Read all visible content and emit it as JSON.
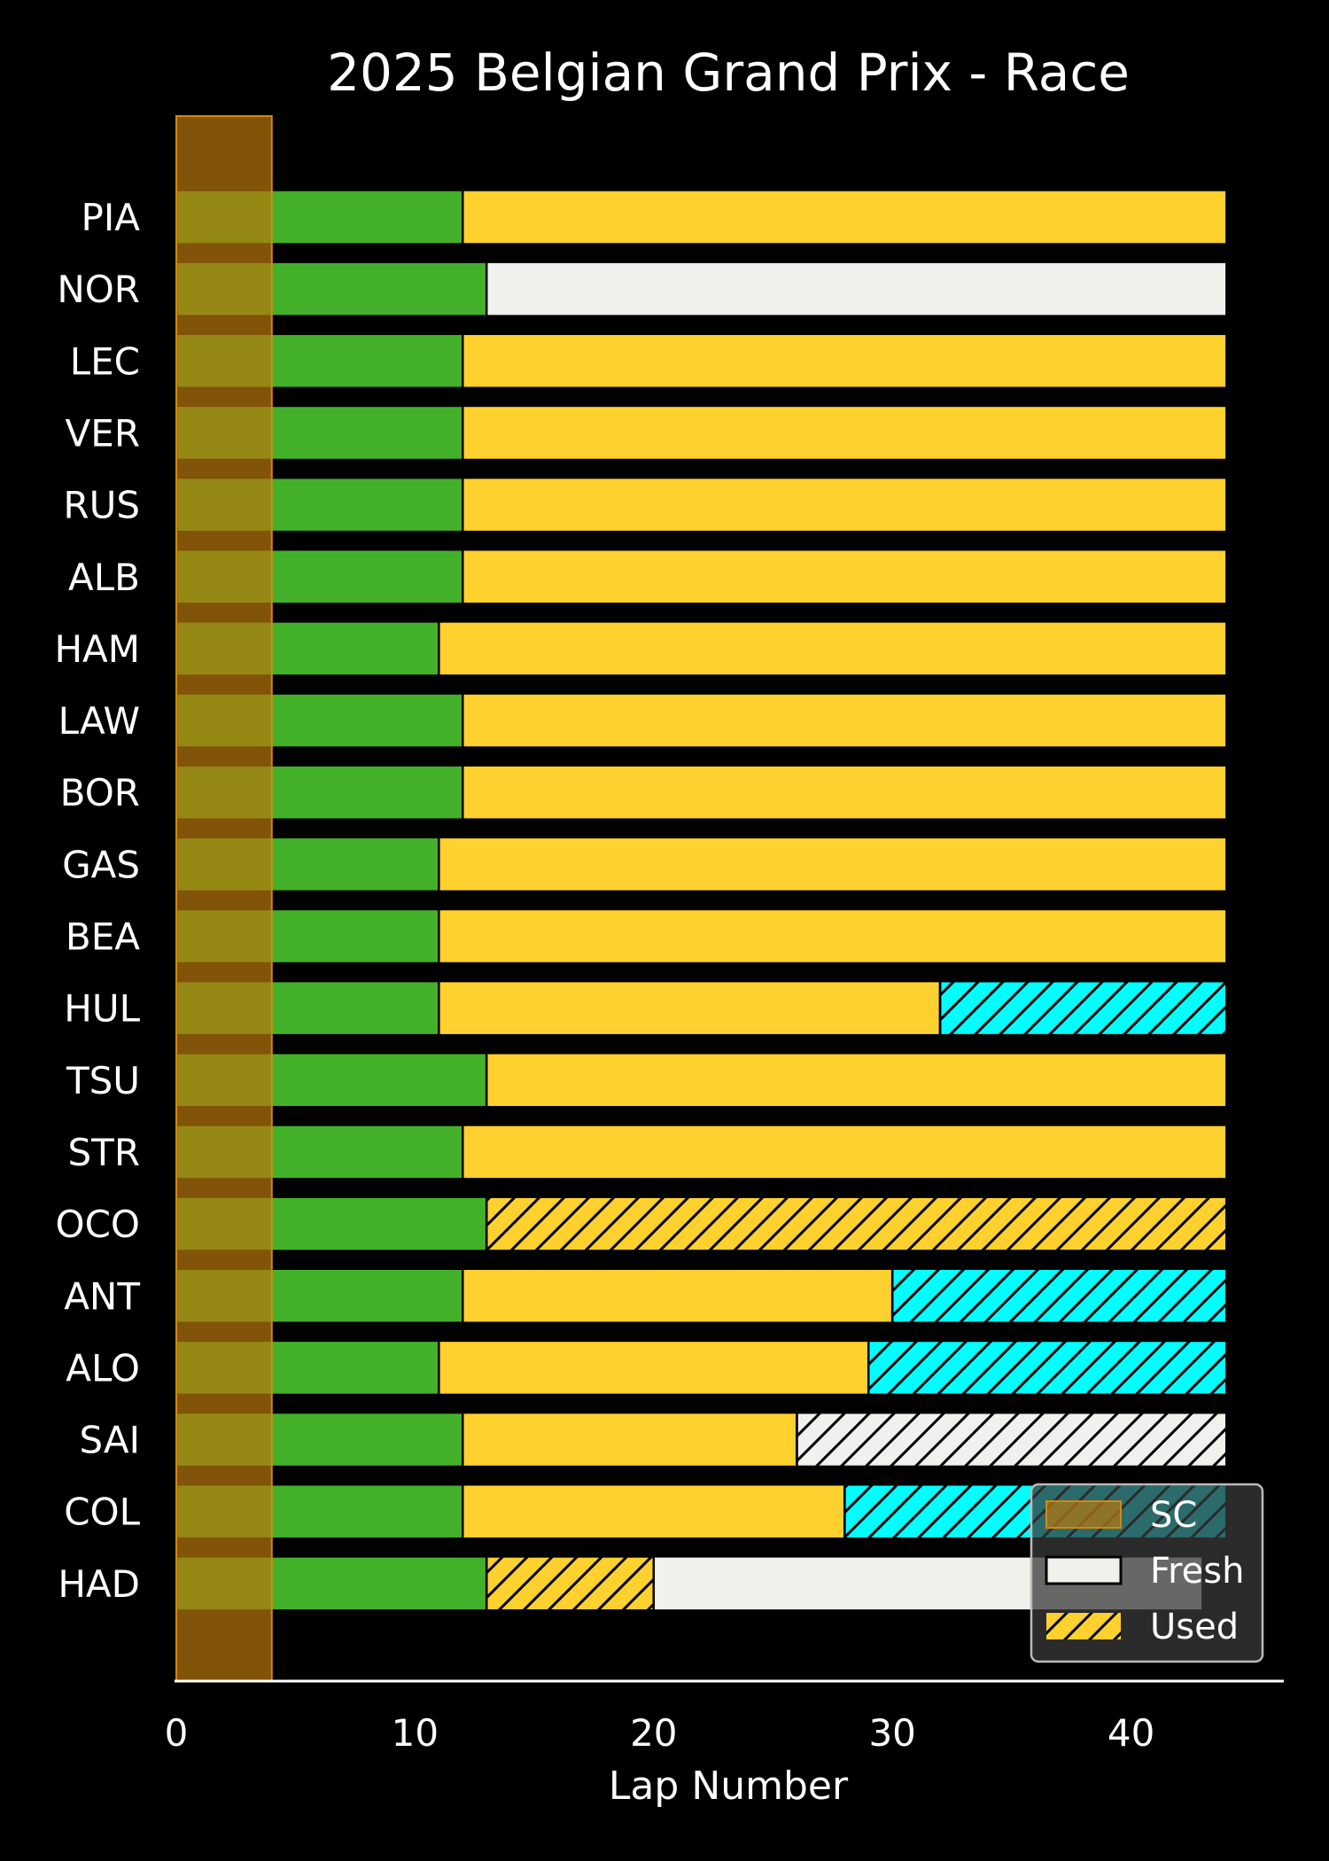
{
  "chart_data": {
    "type": "bar",
    "orientation": "horizontal",
    "stacked": true,
    "title": "2025 Belgian Grand Prix - Race",
    "xlabel": "Lap Number",
    "ylabel": "",
    "xlim": [
      0,
      46.4
    ],
    "xticks": [
      0,
      10,
      20,
      30,
      40
    ],
    "grid": false,
    "legend_position": "bottom-right",
    "compound_colors": {
      "INTERMEDIATE": "#43b02a",
      "MEDIUM": "#ffd12e",
      "HARD": "#f0f0ec",
      "SOFT": "#00ffff"
    },
    "safety_car": {
      "label": "SC",
      "start": 0,
      "end": 4,
      "color": "#b8770d"
    },
    "legend": [
      {
        "label": "SC",
        "kind": "sc"
      },
      {
        "label": "Fresh",
        "kind": "fresh"
      },
      {
        "label": "Used",
        "kind": "used"
      }
    ],
    "drivers": [
      {
        "name": "PIA",
        "stints": [
          {
            "compound": "INTERMEDIATE",
            "start": 0,
            "end": 12,
            "used": false
          },
          {
            "compound": "MEDIUM",
            "start": 12,
            "end": 44,
            "used": false
          }
        ]
      },
      {
        "name": "NOR",
        "stints": [
          {
            "compound": "INTERMEDIATE",
            "start": 0,
            "end": 13,
            "used": false
          },
          {
            "compound": "HARD",
            "start": 13,
            "end": 44,
            "used": false
          }
        ]
      },
      {
        "name": "LEC",
        "stints": [
          {
            "compound": "INTERMEDIATE",
            "start": 0,
            "end": 12,
            "used": false
          },
          {
            "compound": "MEDIUM",
            "start": 12,
            "end": 44,
            "used": false
          }
        ]
      },
      {
        "name": "VER",
        "stints": [
          {
            "compound": "INTERMEDIATE",
            "start": 0,
            "end": 12,
            "used": false
          },
          {
            "compound": "MEDIUM",
            "start": 12,
            "end": 44,
            "used": false
          }
        ]
      },
      {
        "name": "RUS",
        "stints": [
          {
            "compound": "INTERMEDIATE",
            "start": 0,
            "end": 12,
            "used": false
          },
          {
            "compound": "MEDIUM",
            "start": 12,
            "end": 44,
            "used": false
          }
        ]
      },
      {
        "name": "ALB",
        "stints": [
          {
            "compound": "INTERMEDIATE",
            "start": 0,
            "end": 12,
            "used": false
          },
          {
            "compound": "MEDIUM",
            "start": 12,
            "end": 44,
            "used": false
          }
        ]
      },
      {
        "name": "HAM",
        "stints": [
          {
            "compound": "INTERMEDIATE",
            "start": 0,
            "end": 11,
            "used": false
          },
          {
            "compound": "MEDIUM",
            "start": 11,
            "end": 44,
            "used": false
          }
        ]
      },
      {
        "name": "LAW",
        "stints": [
          {
            "compound": "INTERMEDIATE",
            "start": 0,
            "end": 12,
            "used": false
          },
          {
            "compound": "MEDIUM",
            "start": 12,
            "end": 44,
            "used": false
          }
        ]
      },
      {
        "name": "BOR",
        "stints": [
          {
            "compound": "INTERMEDIATE",
            "start": 0,
            "end": 12,
            "used": false
          },
          {
            "compound": "MEDIUM",
            "start": 12,
            "end": 44,
            "used": false
          }
        ]
      },
      {
        "name": "GAS",
        "stints": [
          {
            "compound": "INTERMEDIATE",
            "start": 0,
            "end": 11,
            "used": false
          },
          {
            "compound": "MEDIUM",
            "start": 11,
            "end": 44,
            "used": false
          }
        ]
      },
      {
        "name": "BEA",
        "stints": [
          {
            "compound": "INTERMEDIATE",
            "start": 0,
            "end": 11,
            "used": false
          },
          {
            "compound": "MEDIUM",
            "start": 11,
            "end": 44,
            "used": false
          }
        ]
      },
      {
        "name": "HUL",
        "stints": [
          {
            "compound": "INTERMEDIATE",
            "start": 0,
            "end": 11,
            "used": false
          },
          {
            "compound": "MEDIUM",
            "start": 11,
            "end": 32,
            "used": false
          },
          {
            "compound": "SOFT",
            "start": 32,
            "end": 44,
            "used": true
          }
        ]
      },
      {
        "name": "TSU",
        "stints": [
          {
            "compound": "INTERMEDIATE",
            "start": 0,
            "end": 13,
            "used": false
          },
          {
            "compound": "MEDIUM",
            "start": 13,
            "end": 44,
            "used": false
          }
        ]
      },
      {
        "name": "STR",
        "stints": [
          {
            "compound": "INTERMEDIATE",
            "start": 0,
            "end": 12,
            "used": false
          },
          {
            "compound": "MEDIUM",
            "start": 12,
            "end": 44,
            "used": false
          }
        ]
      },
      {
        "name": "OCO",
        "stints": [
          {
            "compound": "INTERMEDIATE",
            "start": 0,
            "end": 13,
            "used": false
          },
          {
            "compound": "MEDIUM",
            "start": 13,
            "end": 44,
            "used": true
          }
        ]
      },
      {
        "name": "ANT",
        "stints": [
          {
            "compound": "INTERMEDIATE",
            "start": 0,
            "end": 12,
            "used": false
          },
          {
            "compound": "MEDIUM",
            "start": 12,
            "end": 30,
            "used": false
          },
          {
            "compound": "SOFT",
            "start": 30,
            "end": 44,
            "used": true
          }
        ]
      },
      {
        "name": "ALO",
        "stints": [
          {
            "compound": "INTERMEDIATE",
            "start": 0,
            "end": 11,
            "used": false
          },
          {
            "compound": "MEDIUM",
            "start": 11,
            "end": 29,
            "used": false
          },
          {
            "compound": "SOFT",
            "start": 29,
            "end": 44,
            "used": true
          }
        ]
      },
      {
        "name": "SAI",
        "stints": [
          {
            "compound": "INTERMEDIATE",
            "start": 0,
            "end": 12,
            "used": false
          },
          {
            "compound": "MEDIUM",
            "start": 12,
            "end": 26,
            "used": false
          },
          {
            "compound": "HARD",
            "start": 26,
            "end": 44,
            "used": true
          }
        ]
      },
      {
        "name": "COL",
        "stints": [
          {
            "compound": "INTERMEDIATE",
            "start": 0,
            "end": 12,
            "used": false
          },
          {
            "compound": "MEDIUM",
            "start": 12,
            "end": 28,
            "used": false
          },
          {
            "compound": "SOFT",
            "start": 28,
            "end": 44,
            "used": true
          }
        ]
      },
      {
        "name": "HAD",
        "stints": [
          {
            "compound": "INTERMEDIATE",
            "start": 0,
            "end": 13,
            "used": false
          },
          {
            "compound": "MEDIUM",
            "start": 13,
            "end": 20,
            "used": true
          },
          {
            "compound": "HARD",
            "start": 20,
            "end": 43,
            "used": false
          }
        ]
      }
    ]
  }
}
